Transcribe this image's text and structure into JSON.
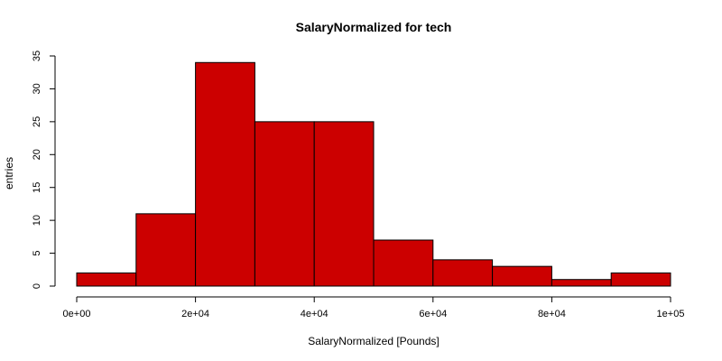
{
  "chart_data": {
    "type": "bar",
    "title": "SalaryNormalized for tech",
    "xlabel": "SalaryNormalized [Pounds]",
    "ylabel": "entries",
    "bin_edges": [
      0,
      10000,
      20000,
      30000,
      40000,
      50000,
      60000,
      70000,
      80000,
      90000,
      100000
    ],
    "values": [
      2,
      11,
      34,
      25,
      25,
      7,
      4,
      3,
      1,
      2
    ],
    "xlim": [
      0,
      100000
    ],
    "ylim": [
      0,
      35
    ],
    "x_ticks": [
      0,
      20000,
      40000,
      60000,
      80000,
      100000
    ],
    "x_tick_labels": [
      "0e+00",
      "2e+04",
      "4e+04",
      "6e+04",
      "8e+04",
      "1e+05"
    ],
    "y_ticks": [
      0,
      5,
      10,
      15,
      20,
      25,
      30,
      35
    ],
    "y_tick_labels": [
      "0",
      "5",
      "10",
      "15",
      "20",
      "25",
      "30",
      "35"
    ],
    "bar_color": "#cc0000",
    "grid": false,
    "legend": "none"
  }
}
